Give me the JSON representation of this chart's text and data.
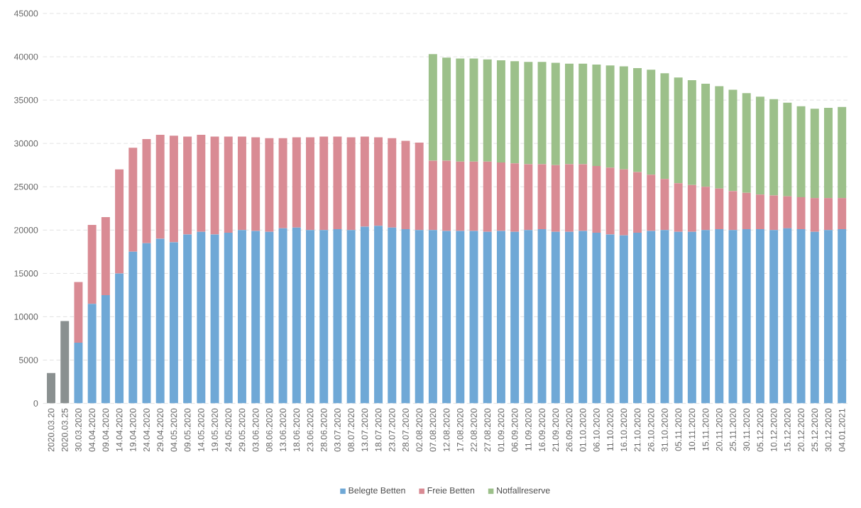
{
  "chart_data": {
    "type": "bar",
    "stacked": true,
    "categories": [
      "2020.03.20",
      "2020.03.25",
      "30.03.2020",
      "04.04.2020",
      "09.04.2020",
      "14.04.2020",
      "19.04.2020",
      "24.04.2020",
      "29.04.2020",
      "04.05.2020",
      "09.05.2020",
      "14.05.2020",
      "19.05.2020",
      "24.05.2020",
      "29.05.2020",
      "03.06.2020",
      "08.06.2020",
      "13.06.2020",
      "18.06.2020",
      "23.06.2020",
      "28.06.2020",
      "03.07.2020",
      "08.07.2020",
      "13.07.2020",
      "18.07.2020",
      "23.07.2020",
      "28.07.2020",
      "02.08.2020",
      "07.08.2020",
      "12.08.2020",
      "17.08.2020",
      "22.08.2020",
      "27.08.2020",
      "01.09.2020",
      "06.09.2020",
      "11.09.2020",
      "16.09.2020",
      "21.09.2020",
      "26.09.2020",
      "01.10.2020",
      "06.10.2020",
      "11.10.2020",
      "16.10.2020",
      "21.10.2020",
      "26.10.2020",
      "31.10.2020",
      "05.11.2020",
      "10.11.2020",
      "15.11.2020",
      "20.11.2020",
      "25.11.2020",
      "30.11.2020",
      "05.12.2020",
      "10.12.2020",
      "15.12.2020",
      "20.12.2020",
      "25.12.2020",
      "30.12.2020",
      "04.01.2021"
    ],
    "series": [
      {
        "name": "Belegte Betten",
        "color": "#6fa8d6",
        "values": [
          null,
          null,
          7000,
          11500,
          12500,
          15000,
          17500,
          18500,
          19000,
          18600,
          19500,
          19800,
          19500,
          19700,
          20000,
          19900,
          19800,
          20200,
          20300,
          20000,
          20000,
          20100,
          20000,
          20400,
          20500,
          20300,
          20100,
          20000,
          20000,
          19900,
          19900,
          19900,
          19800,
          19900,
          19800,
          20000,
          20100,
          19800,
          19800,
          19900,
          19700,
          19500,
          19400,
          19700,
          19900,
          20000,
          19800,
          19800,
          20000,
          20100,
          20000,
          20100,
          20100,
          20000,
          20200,
          20100,
          19800,
          20000,
          20100
        ]
      },
      {
        "name": "Freie Betten",
        "color": "#d98b94",
        "values": [
          null,
          null,
          7000,
          9100,
          9000,
          12000,
          12000,
          12000,
          12000,
          12300,
          11300,
          11200,
          11300,
          11100,
          10800,
          10800,
          10800,
          10400,
          10400,
          10700,
          10800,
          10700,
          10700,
          10400,
          10200,
          10300,
          10200,
          10100,
          8000,
          8100,
          8000,
          8000,
          8100,
          7900,
          7900,
          7600,
          7500,
          7700,
          7800,
          7700,
          7700,
          7700,
          7600,
          7000,
          6500,
          5900,
          5600,
          5400,
          5000,
          4700,
          4500,
          4200,
          4000,
          4000,
          3700,
          3700,
          3900,
          3700,
          3600
        ]
      },
      {
        "name": "Notfallreserve",
        "color": "#9cc08a",
        "values": [
          null,
          null,
          null,
          null,
          null,
          null,
          null,
          null,
          null,
          null,
          null,
          null,
          null,
          null,
          null,
          null,
          null,
          null,
          null,
          null,
          null,
          null,
          null,
          null,
          null,
          null,
          null,
          null,
          12300,
          11900,
          11900,
          11900,
          11800,
          11800,
          11800,
          11800,
          11800,
          11800,
          11600,
          11600,
          11700,
          11800,
          11900,
          12000,
          12100,
          12200,
          12200,
          12100,
          11900,
          11800,
          11700,
          11500,
          11300,
          11100,
          10800,
          10500,
          10300,
          10400,
          10500
        ]
      },
      {
        "color": "#8a9090",
        "values": [
          3500,
          9500,
          null,
          null,
          null,
          null,
          null,
          null,
          null,
          null,
          null,
          null,
          null,
          null,
          null,
          null,
          null,
          null,
          null,
          null,
          null,
          null,
          null,
          null,
          null,
          null,
          null,
          null,
          null,
          null,
          null,
          null,
          null,
          null,
          null,
          null,
          null,
          null,
          null,
          null,
          null,
          null,
          null,
          null,
          null,
          null,
          null,
          null,
          null,
          null,
          null,
          null,
          null,
          null,
          null,
          null,
          null,
          null,
          null
        ]
      }
    ],
    "ylim": [
      0,
      45000
    ],
    "yticks": [
      0,
      5000,
      10000,
      15000,
      20000,
      25000,
      30000,
      35000,
      40000,
      45000
    ],
    "grid": "y",
    "legend": "bottom"
  }
}
